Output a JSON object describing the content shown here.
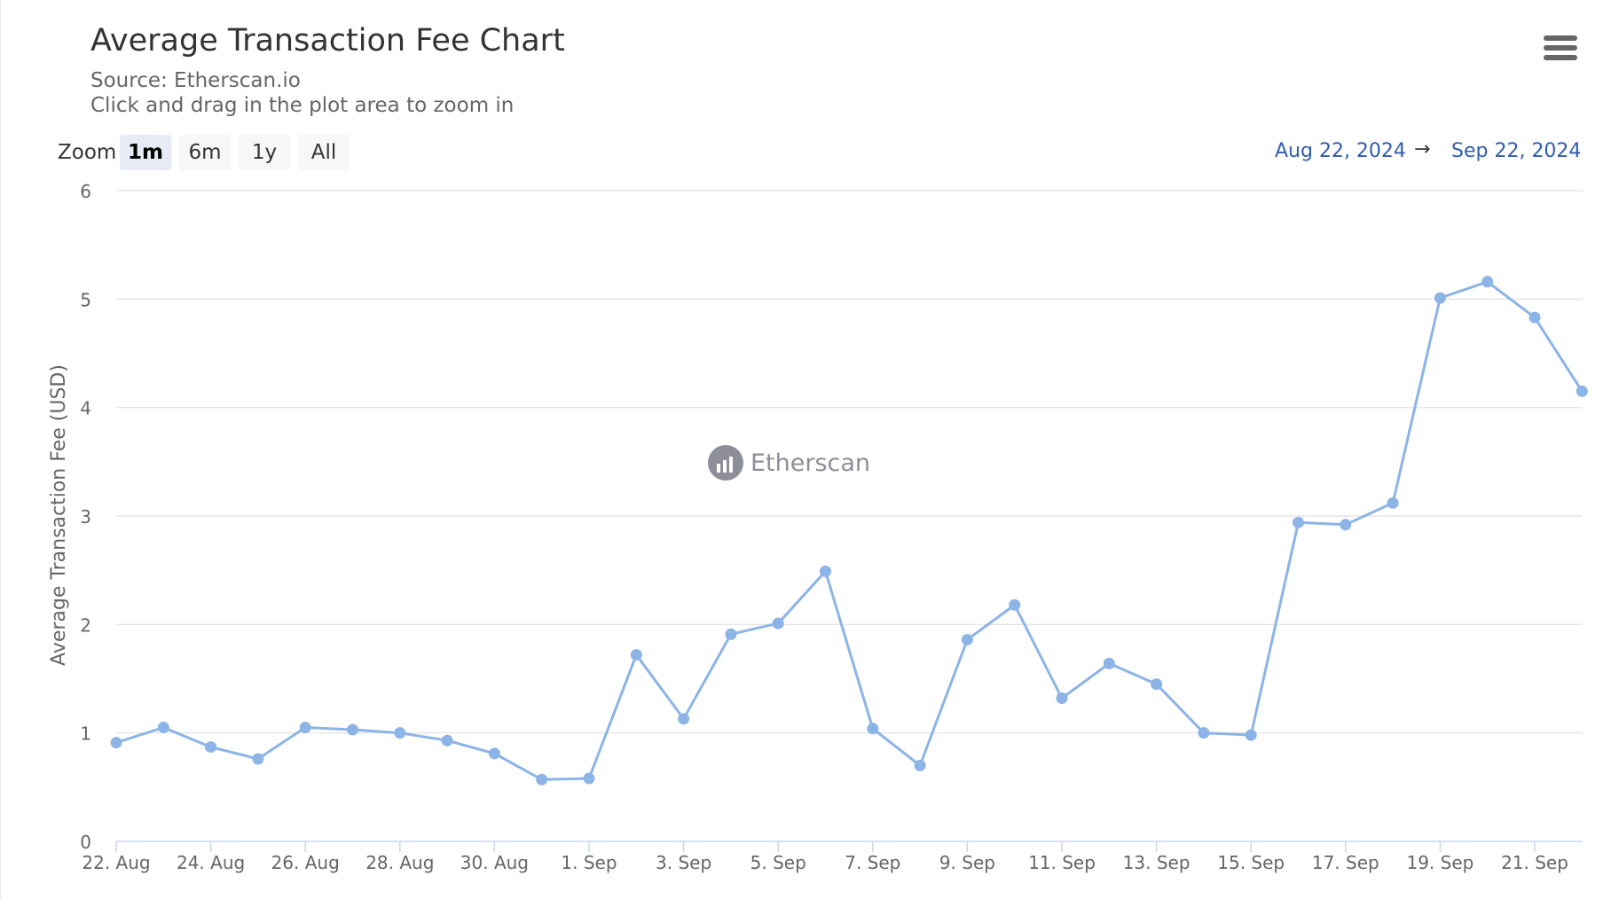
{
  "header": {
    "title": "Average Transaction Fee Chart",
    "source": "Source: Etherscan.io",
    "hint": "Click and drag in the plot area to zoom in",
    "menu_icon": "hamburger-menu-icon"
  },
  "range_selector": {
    "zoom_label": "Zoom",
    "buttons": [
      "1m",
      "6m",
      "1y",
      "All"
    ],
    "selected": "1m",
    "from": "Aug 22, 2024",
    "arrow": "→",
    "to": "Sep 22, 2024"
  },
  "watermark": {
    "text": "Etherscan"
  },
  "colors": {
    "series": "#7cb5ec",
    "series_marker": "#8cb4e6",
    "range_text": "#335cad"
  },
  "chart_data": {
    "type": "line",
    "ylabel": "Average Transaction Fee (USD)",
    "xlabel": "",
    "ylim": [
      0,
      6
    ],
    "yticks": [
      0,
      1,
      2,
      3,
      4,
      5,
      6
    ],
    "grid": true,
    "legend": "none",
    "x": [
      "2024-08-22",
      "2024-08-23",
      "2024-08-24",
      "2024-08-25",
      "2024-08-26",
      "2024-08-27",
      "2024-08-28",
      "2024-08-29",
      "2024-08-30",
      "2024-08-31",
      "2024-09-01",
      "2024-09-02",
      "2024-09-03",
      "2024-09-04",
      "2024-09-05",
      "2024-09-06",
      "2024-09-07",
      "2024-09-08",
      "2024-09-09",
      "2024-09-10",
      "2024-09-11",
      "2024-09-12",
      "2024-09-13",
      "2024-09-14",
      "2024-09-15",
      "2024-09-16",
      "2024-09-17",
      "2024-09-18",
      "2024-09-19",
      "2024-09-20",
      "2024-09-21",
      "2024-09-22"
    ],
    "x_tick_labels": [
      "22. Aug",
      "24. Aug",
      "26. Aug",
      "28. Aug",
      "30. Aug",
      "1. Sep",
      "3. Sep",
      "5. Sep",
      "7. Sep",
      "9. Sep",
      "11. Sep",
      "13. Sep",
      "15. Sep",
      "17. Sep",
      "19. Sep",
      "21. Sep"
    ],
    "series": [
      {
        "values": [
          0.91,
          1.05,
          0.87,
          0.76,
          1.05,
          1.03,
          1.0,
          0.93,
          0.81,
          0.57,
          0.58,
          1.72,
          1.13,
          1.91,
          2.01,
          2.49,
          1.04,
          0.7,
          1.86,
          2.18,
          1.32,
          1.64,
          1.45,
          1.0,
          0.98,
          2.94,
          2.92,
          3.12,
          5.01,
          5.16,
          4.83,
          4.15
        ]
      }
    ]
  }
}
